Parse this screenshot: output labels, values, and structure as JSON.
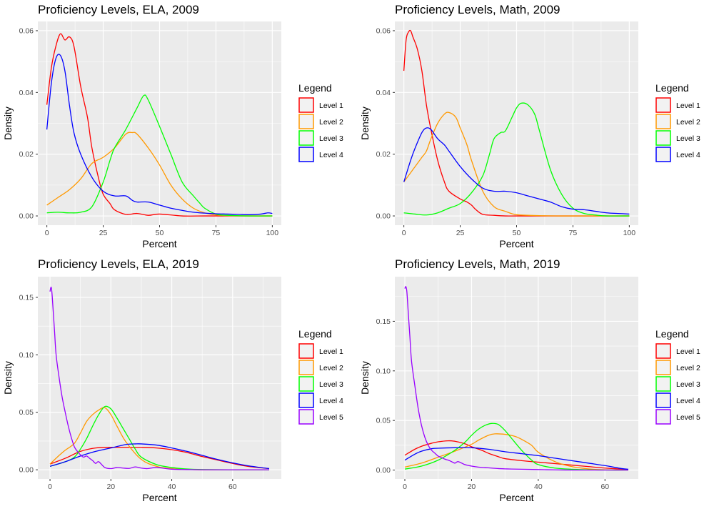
{
  "chart_data": [
    {
      "type": "line",
      "title": "Proficiency Levels, ELA, 2009",
      "xlabel": "Percent",
      "ylabel": "Density",
      "xlim": [
        0,
        100
      ],
      "ylim": [
        0,
        0.06
      ],
      "xticks": [
        0,
        25,
        50,
        75,
        100
      ],
      "xtick_labels": [
        "0",
        "25",
        "50",
        "75",
        "100"
      ],
      "yticks": [
        0,
        0.02,
        0.04,
        0.06
      ],
      "ytick_labels": [
        "0.00",
        "0.02",
        "0.04",
        "0.06"
      ],
      "legend_title": "Legend",
      "series": [
        {
          "name": "Level 1",
          "color": "#ff0000",
          "x": [
            0,
            2,
            4,
            6,
            8,
            10,
            12,
            15,
            18,
            20,
            23,
            25,
            28,
            30,
            35,
            40,
            45,
            50,
            60,
            70,
            80,
            90,
            100
          ],
          "y": [
            0.036,
            0.048,
            0.055,
            0.059,
            0.057,
            0.058,
            0.055,
            0.042,
            0.032,
            0.022,
            0.012,
            0.007,
            0.004,
            0.002,
            0.0005,
            0.0008,
            0.0002,
            0.0006,
            0,
            0,
            0,
            0,
            0
          ]
        },
        {
          "name": "Level 2",
          "color": "#ff9900",
          "x": [
            0,
            5,
            10,
            15,
            20,
            25,
            30,
            35,
            38,
            40,
            45,
            50,
            55,
            60,
            65,
            70,
            75,
            80,
            90,
            100
          ],
          "y": [
            0.0035,
            0.006,
            0.0085,
            0.012,
            0.017,
            0.019,
            0.022,
            0.0265,
            0.027,
            0.0265,
            0.022,
            0.0165,
            0.01,
            0.0055,
            0.0025,
            0.001,
            0.0003,
            0.0001,
            0,
            0
          ]
        },
        {
          "name": "Level 3",
          "color": "#00ff00",
          "x": [
            0,
            5,
            10,
            15,
            20,
            25,
            28,
            30,
            35,
            40,
            43,
            45,
            50,
            55,
            60,
            65,
            68,
            70,
            75,
            80,
            90,
            100
          ],
          "y": [
            0.001,
            0.0012,
            0.001,
            0.0012,
            0.003,
            0.011,
            0.018,
            0.022,
            0.028,
            0.035,
            0.039,
            0.0375,
            0.029,
            0.02,
            0.011,
            0.0065,
            0.004,
            0.0025,
            0.0006,
            0.0002,
            0,
            0
          ]
        },
        {
          "name": "Level 4",
          "color": "#0000ff",
          "x": [
            0,
            2,
            4,
            6,
            8,
            10,
            12,
            15,
            20,
            25,
            30,
            35,
            38,
            40,
            45,
            50,
            55,
            60,
            65,
            70,
            75,
            80,
            85,
            90,
            95,
            98,
            100
          ],
          "y": [
            0.028,
            0.043,
            0.051,
            0.052,
            0.047,
            0.036,
            0.027,
            0.02,
            0.0125,
            0.008,
            0.0065,
            0.0065,
            0.005,
            0.0045,
            0.0045,
            0.0035,
            0.0025,
            0.0018,
            0.0012,
            0.0009,
            0.0007,
            0.0006,
            0.0005,
            0.0004,
            0.0006,
            0.001,
            0.0008
          ]
        }
      ]
    },
    {
      "type": "line",
      "title": "Proficiency Levels, Math, 2009",
      "xlabel": "Percent",
      "ylabel": "Density",
      "xlim": [
        0,
        100
      ],
      "ylim": [
        0,
        0.06
      ],
      "xticks": [
        0,
        25,
        50,
        75,
        100
      ],
      "xtick_labels": [
        "0",
        "25",
        "50",
        "75",
        "100"
      ],
      "yticks": [
        0,
        0.02,
        0.04,
        0.06
      ],
      "ytick_labels": [
        "0.00",
        "0.02",
        "0.04",
        "0.06"
      ],
      "legend_title": "Legend",
      "series": [
        {
          "name": "Level 1",
          "color": "#ff0000",
          "x": [
            0,
            1,
            2,
            3,
            4,
            6,
            8,
            10,
            12,
            15,
            18,
            20,
            25,
            28,
            30,
            32,
            35,
            40,
            45,
            50,
            60,
            70,
            80,
            90,
            100
          ],
          "y": [
            0.047,
            0.057,
            0.0595,
            0.06,
            0.058,
            0.054,
            0.047,
            0.036,
            0.028,
            0.018,
            0.011,
            0.008,
            0.0055,
            0.0045,
            0.0035,
            0.002,
            0.0005,
            0.0002,
            0,
            0,
            0,
            0,
            0,
            0,
            0
          ]
        },
        {
          "name": "Level 2",
          "color": "#ff9900",
          "x": [
            0,
            3,
            5,
            8,
            10,
            12,
            15,
            18,
            20,
            23,
            25,
            28,
            30,
            35,
            40,
            45,
            50,
            60,
            70,
            80,
            90,
            100
          ],
          "y": [
            0.011,
            0.014,
            0.016,
            0.019,
            0.021,
            0.025,
            0.03,
            0.033,
            0.0335,
            0.032,
            0.0285,
            0.023,
            0.018,
            0.008,
            0.003,
            0.0015,
            0.0004,
            0.0001,
            0,
            0,
            0,
            0
          ]
        },
        {
          "name": "Level 3",
          "color": "#00ff00",
          "x": [
            0,
            5,
            10,
            15,
            20,
            25,
            30,
            35,
            38,
            40,
            43,
            45,
            48,
            50,
            52,
            55,
            58,
            60,
            65,
            70,
            75,
            80,
            85,
            90,
            100
          ],
          "y": [
            0.001,
            0.0006,
            0.0003,
            0.001,
            0.0025,
            0.004,
            0.0075,
            0.013,
            0.02,
            0.025,
            0.027,
            0.0275,
            0.032,
            0.035,
            0.0365,
            0.036,
            0.033,
            0.028,
            0.015,
            0.007,
            0.0025,
            0.0008,
            0.0003,
            0,
            0
          ]
        },
        {
          "name": "Level 4",
          "color": "#0000ff",
          "x": [
            0,
            3,
            5,
            8,
            10,
            12,
            15,
            18,
            20,
            25,
            30,
            35,
            40,
            45,
            50,
            55,
            60,
            65,
            70,
            75,
            80,
            85,
            90,
            95,
            100
          ],
          "y": [
            0.011,
            0.018,
            0.022,
            0.027,
            0.0285,
            0.028,
            0.025,
            0.023,
            0.021,
            0.016,
            0.012,
            0.009,
            0.008,
            0.008,
            0.0075,
            0.0065,
            0.0055,
            0.0045,
            0.003,
            0.0022,
            0.002,
            0.0015,
            0.001,
            0.0008,
            0.0006
          ]
        }
      ]
    },
    {
      "type": "line",
      "title": "Proficiency Levels, ELA, 2019",
      "xlabel": "Percent",
      "ylabel": "Density",
      "xlim": [
        0,
        72
      ],
      "ylim": [
        0,
        0.16
      ],
      "xticks": [
        0,
        20,
        40,
        60
      ],
      "xtick_labels": [
        "0",
        "20",
        "40",
        "60"
      ],
      "yticks": [
        0,
        0.05,
        0.1,
        0.15
      ],
      "ytick_labels": [
        "0.00",
        "0.05",
        "0.10",
        "0.15"
      ],
      "legend_title": "Legend",
      "series": [
        {
          "name": "Level 1",
          "color": "#ff0000",
          "x": [
            0,
            5,
            10,
            15,
            20,
            25,
            30,
            35,
            40,
            45,
            50,
            55,
            60,
            65,
            72
          ],
          "y": [
            0.005,
            0.01,
            0.016,
            0.019,
            0.0195,
            0.0195,
            0.0195,
            0.019,
            0.0175,
            0.015,
            0.0115,
            0.0085,
            0.0055,
            0.003,
            0.001
          ]
        },
        {
          "name": "Level 2",
          "color": "#ff9900",
          "x": [
            0,
            3,
            5,
            8,
            10,
            12,
            14,
            16,
            18,
            20,
            22,
            25,
            30,
            35,
            40,
            45,
            50,
            60,
            72
          ],
          "y": [
            0.005,
            0.0125,
            0.017,
            0.023,
            0.032,
            0.042,
            0.048,
            0.052,
            0.054,
            0.048,
            0.038,
            0.024,
            0.009,
            0.003,
            0.001,
            0.0003,
            0,
            0,
            0
          ]
        },
        {
          "name": "Level 3",
          "color": "#00ff00",
          "x": [
            0,
            5,
            8,
            10,
            12,
            14,
            16,
            18,
            20,
            22,
            24,
            26,
            28,
            30,
            35,
            40,
            45,
            50,
            60,
            72
          ],
          "y": [
            0.003,
            0.007,
            0.011,
            0.018,
            0.027,
            0.038,
            0.048,
            0.055,
            0.053,
            0.045,
            0.036,
            0.027,
            0.018,
            0.011,
            0.0045,
            0.002,
            0.0007,
            0.0002,
            0,
            0
          ]
        },
        {
          "name": "Level 4",
          "color": "#0000ff",
          "x": [
            0,
            5,
            10,
            15,
            20,
            25,
            28,
            30,
            35,
            40,
            45,
            50,
            55,
            60,
            65,
            72
          ],
          "y": [
            0.003,
            0.007,
            0.012,
            0.016,
            0.019,
            0.022,
            0.0225,
            0.0225,
            0.0215,
            0.019,
            0.016,
            0.0125,
            0.009,
            0.006,
            0.0035,
            0.001
          ]
        },
        {
          "name": "Level 5",
          "color": "#9900ff",
          "x": [
            0,
            0.3,
            0.6,
            1,
            1.5,
            2,
            3,
            4,
            5,
            6,
            7,
            8,
            9,
            10,
            11,
            12,
            13,
            14,
            15,
            16,
            18,
            20,
            22,
            24,
            26,
            28,
            30,
            32,
            35,
            40,
            45,
            50,
            60,
            72
          ],
          "y": [
            0.155,
            0.159,
            0.155,
            0.14,
            0.12,
            0.1,
            0.08,
            0.063,
            0.05,
            0.038,
            0.028,
            0.02,
            0.016,
            0.013,
            0.011,
            0.012,
            0.01,
            0.008,
            0.0055,
            0.007,
            0.002,
            0.001,
            0.002,
            0.0015,
            0.0012,
            0.0025,
            0.0015,
            0.001,
            0.002,
            0.0005,
            0.0002,
            0,
            0,
            0
          ]
        }
      ]
    },
    {
      "type": "line",
      "title": "Proficiency Levels, Math, 2019",
      "xlabel": "Percent",
      "ylabel": "Density",
      "xlim": [
        0,
        67
      ],
      "ylim": [
        0,
        0.185
      ],
      "xticks": [
        0,
        20,
        40,
        60
      ],
      "xtick_labels": [
        "0",
        "20",
        "40",
        "60"
      ],
      "yticks": [
        0,
        0.05,
        0.1,
        0.15
      ],
      "ytick_labels": [
        "0.00",
        "0.05",
        "0.10",
        "0.15"
      ],
      "legend_title": "Legend",
      "series": [
        {
          "name": "Level 1",
          "color": "#ff0000",
          "x": [
            0,
            3,
            5,
            8,
            10,
            13,
            15,
            18,
            20,
            23,
            25,
            28,
            30,
            35,
            40,
            45,
            50,
            55,
            60,
            67
          ],
          "y": [
            0.015,
            0.021,
            0.024,
            0.027,
            0.0285,
            0.0295,
            0.029,
            0.0265,
            0.0235,
            0.02,
            0.017,
            0.0135,
            0.0115,
            0.0095,
            0.008,
            0.0065,
            0.005,
            0.0035,
            0.002,
            0.0005
          ]
        },
        {
          "name": "Level 2",
          "color": "#ff9900",
          "x": [
            0,
            5,
            10,
            15,
            20,
            22,
            25,
            27,
            30,
            33,
            35,
            38,
            40,
            45,
            50,
            55,
            60,
            67
          ],
          "y": [
            0.003,
            0.007,
            0.013,
            0.019,
            0.026,
            0.03,
            0.035,
            0.0365,
            0.036,
            0.034,
            0.031,
            0.025,
            0.018,
            0.0085,
            0.0035,
            0.0012,
            0.0003,
            0
          ]
        },
        {
          "name": "Level 3",
          "color": "#00ff00",
          "x": [
            0,
            5,
            10,
            15,
            18,
            20,
            22,
            24,
            26,
            28,
            30,
            32,
            35,
            38,
            40,
            45,
            50,
            55,
            60,
            67
          ],
          "y": [
            0.001,
            0.004,
            0.01,
            0.02,
            0.028,
            0.035,
            0.041,
            0.045,
            0.047,
            0.046,
            0.04,
            0.032,
            0.02,
            0.01,
            0.0055,
            0.002,
            0.0008,
            0.0003,
            0,
            0
          ]
        },
        {
          "name": "Level 4",
          "color": "#0000ff",
          "x": [
            0,
            3,
            5,
            8,
            10,
            15,
            20,
            25,
            30,
            35,
            40,
            45,
            50,
            55,
            60,
            65,
            67
          ],
          "y": [
            0.01,
            0.016,
            0.019,
            0.0215,
            0.022,
            0.0225,
            0.0225,
            0.021,
            0.0185,
            0.0165,
            0.0145,
            0.012,
            0.0095,
            0.007,
            0.0045,
            0.0015,
            0.0008
          ]
        },
        {
          "name": "Level 5",
          "color": "#9900ff",
          "x": [
            0,
            0.3,
            0.6,
            1,
            1.5,
            2,
            3,
            4,
            5,
            6,
            7,
            8,
            9,
            10,
            11,
            12,
            13,
            14,
            15,
            16,
            18,
            20,
            22,
            24,
            26,
            28,
            30,
            32,
            35,
            40,
            45,
            50,
            60,
            67
          ],
          "y": [
            0.183,
            0.185,
            0.18,
            0.16,
            0.135,
            0.11,
            0.085,
            0.062,
            0.045,
            0.033,
            0.025,
            0.02,
            0.017,
            0.014,
            0.0125,
            0.011,
            0.01,
            0.0085,
            0.007,
            0.0085,
            0.0055,
            0.004,
            0.003,
            0.0025,
            0.002,
            0.0015,
            0.0012,
            0.001,
            0.0008,
            0.0005,
            0.0002,
            0,
            0,
            0
          ]
        }
      ]
    }
  ]
}
